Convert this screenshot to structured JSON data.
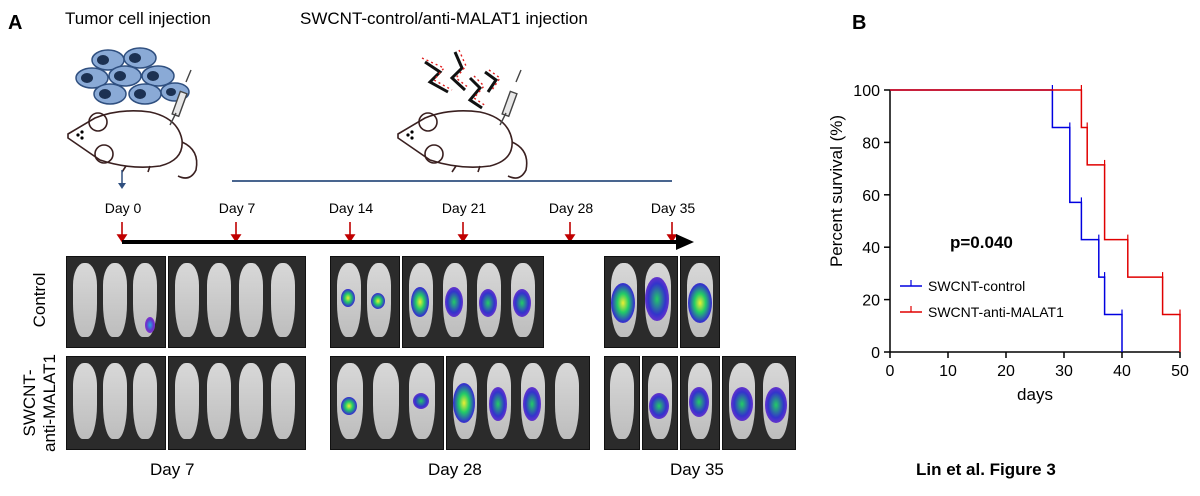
{
  "panel_a": {
    "letter": "A",
    "tumor_injection_label": "Tumor cell injection",
    "treatment_injection_label": "SWCNT-control/anti-MALAT1 injection",
    "timeline_days": [
      "Day 0",
      "Day 7",
      "Day 14",
      "Day 21",
      "Day 28",
      "Day 35"
    ],
    "row_labels": {
      "control": "Control",
      "anti_line1": "SWCNT-",
      "anti_line2": "anti-MALAT1"
    },
    "image_day_labels": [
      "Day 7",
      "Day 28",
      "Day 35"
    ]
  },
  "panel_b": {
    "letter": "B",
    "caption": "Lin et al. Figure 3"
  },
  "chart_data": {
    "type": "line",
    "subtype": "kaplan-meier-survival",
    "title": "",
    "xlabel": "days",
    "ylabel": "Percent survival  (%)",
    "xlim": [
      0,
      50
    ],
    "ylim": [
      0,
      100
    ],
    "xticks": [
      0,
      10,
      20,
      30,
      40,
      50
    ],
    "yticks": [
      0,
      20,
      40,
      60,
      80,
      100
    ],
    "annotation": "p=0.040",
    "legend_position": "center-right",
    "series": [
      {
        "name": "SWCNT-control",
        "color": "#0000e0",
        "x": [
          0,
          28,
          31,
          33,
          36,
          37,
          40
        ],
        "y": [
          100,
          85.7,
          57.1,
          42.9,
          28.6,
          14.3,
          0
        ]
      },
      {
        "name": "SWCNT-anti-MALAT1",
        "color": "#e00000",
        "x": [
          0,
          33,
          34,
          37,
          41,
          47,
          50
        ],
        "y": [
          100,
          85.7,
          71.4,
          42.9,
          28.6,
          14.3,
          0
        ]
      }
    ]
  }
}
